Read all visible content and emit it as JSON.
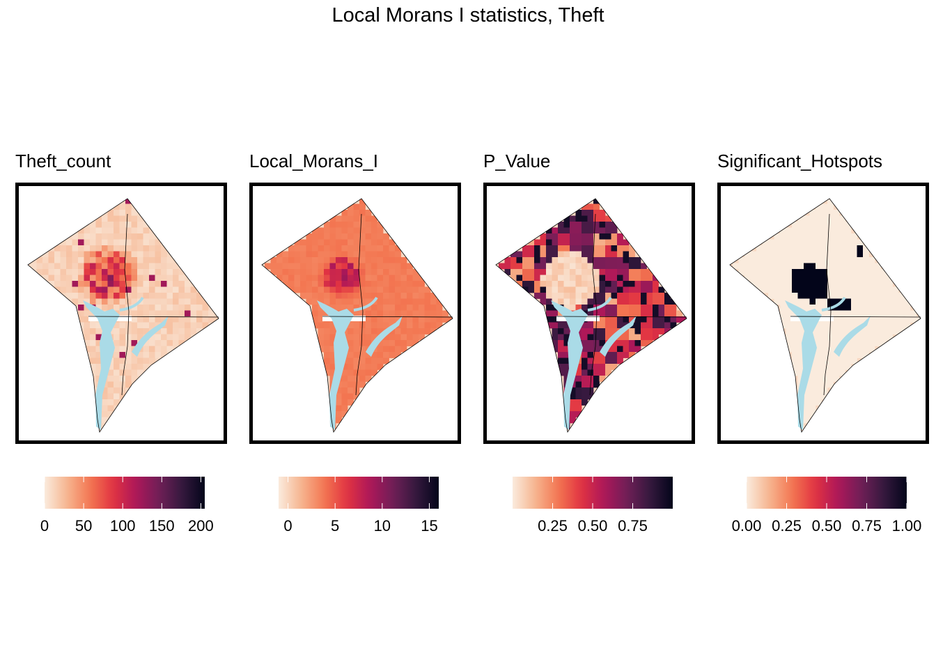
{
  "title": "Local Morans I statistics, Theft",
  "colors": {
    "water": "#aadbe7",
    "ramp": [
      "#faebdd",
      "#f6b48f",
      "#f37651",
      "#e13342",
      "#ad1759",
      "#701f57",
      "#35193e",
      "#03051a"
    ]
  },
  "panels": [
    {
      "id": "theft",
      "title": "Theft_count",
      "legend_range": [
        0,
        205
      ],
      "ticks": [
        0,
        50,
        100,
        150,
        200
      ],
      "tick_labels": [
        "0",
        "50",
        "100",
        "150",
        "200"
      ],
      "pattern": "counts"
    },
    {
      "id": "moran",
      "title": "Local_Morans_I",
      "legend_range": [
        -1,
        16
      ],
      "ticks": [
        0,
        5,
        10,
        15
      ],
      "tick_labels": [
        "0",
        "5",
        "10",
        "15"
      ],
      "pattern": "moran"
    },
    {
      "id": "pvalue",
      "title": "P_Value",
      "legend_range": [
        0,
        1
      ],
      "ticks": [
        0.25,
        0.5,
        0.75
      ],
      "tick_labels": [
        "0.25",
        "0.50",
        "0.75"
      ],
      "pattern": "pvalue"
    },
    {
      "id": "hotspots",
      "title": "Significant_Hotspots",
      "legend_range": [
        0,
        1
      ],
      "ticks": [
        0,
        0.25,
        0.5,
        0.75,
        1
      ],
      "tick_labels": [
        "0.00",
        "0.25",
        "0.50",
        "0.75",
        "1.00"
      ],
      "pattern": "hotspots"
    }
  ]
}
